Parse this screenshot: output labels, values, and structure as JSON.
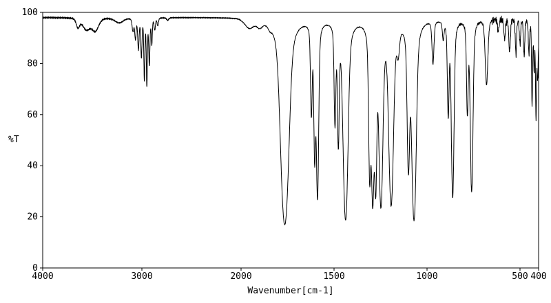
{
  "chart_data": {
    "type": "line",
    "title": "",
    "xlabel": "Wavenumber[cm-1]",
    "ylabel": "%T",
    "background": "#ffffff",
    "line_color": "#000000",
    "axis_color": "#000000",
    "x_axis": {
      "min": 400,
      "max": 4000,
      "reversed": true,
      "scale_break": {
        "at": 2000,
        "left_fraction": 0.4
      },
      "ticks": [
        4000,
        3000,
        2000,
        1500,
        1000,
        500,
        400
      ]
    },
    "y_axis": {
      "min": 0,
      "max": 100,
      "ticks": [
        0,
        20,
        40,
        60,
        80,
        100
      ]
    },
    "baseline": 98,
    "peaks": [
      {
        "nu": 3645,
        "t": 94.5,
        "hw": 20
      },
      {
        "nu": 3560,
        "t": 93.5,
        "hw": 45
      },
      {
        "nu": 3470,
        "t": 93.0,
        "hw": 40
      },
      {
        "nu": 3230,
        "t": 96.0,
        "hw": 50
      },
      {
        "nu": 3090,
        "t": 93.0,
        "hw": 10
      },
      {
        "nu": 3065,
        "t": 90.0,
        "hw": 8
      },
      {
        "nu": 3035,
        "t": 86.0,
        "hw": 8
      },
      {
        "nu": 3005,
        "t": 83.0,
        "hw": 7
      },
      {
        "nu": 2975,
        "t": 74.0,
        "hw": 6
      },
      {
        "nu": 2950,
        "t": 72.0,
        "hw": 6
      },
      {
        "nu": 2925,
        "t": 80.0,
        "hw": 7
      },
      {
        "nu": 2900,
        "t": 88.0,
        "hw": 6
      },
      {
        "nu": 2870,
        "t": 93.5,
        "hw": 8
      },
      {
        "nu": 2840,
        "t": 95.0,
        "hw": 8
      },
      {
        "nu": 2740,
        "t": 97.0,
        "hw": 12
      },
      {
        "nu": 1955,
        "t": 94.5,
        "hw": 28
      },
      {
        "nu": 1900,
        "t": 95.5,
        "hw": 18
      },
      {
        "nu": 1845,
        "t": 96.5,
        "hw": 12
      },
      {
        "nu": 1765,
        "t": 17.0,
        "hw": 20
      },
      {
        "nu": 1622,
        "t": 62.0,
        "hw": 5
      },
      {
        "nu": 1604,
        "t": 44.0,
        "hw": 5
      },
      {
        "nu": 1589,
        "t": 28.0,
        "hw": 6
      },
      {
        "nu": 1495,
        "t": 58.0,
        "hw": 5
      },
      {
        "nu": 1477,
        "t": 50.0,
        "hw": 5
      },
      {
        "nu": 1438,
        "t": 19.0,
        "hw": 12
      },
      {
        "nu": 1308,
        "t": 37.0,
        "hw": 6
      },
      {
        "nu": 1292,
        "t": 27.0,
        "hw": 7
      },
      {
        "nu": 1276,
        "t": 33.0,
        "hw": 6
      },
      {
        "nu": 1248,
        "t": 25.0,
        "hw": 10
      },
      {
        "nu": 1193,
        "t": 25.0,
        "hw": 12
      },
      {
        "nu": 1155,
        "t": 88.0,
        "hw": 8
      },
      {
        "nu": 1100,
        "t": 40.0,
        "hw": 7
      },
      {
        "nu": 1070,
        "t": 19.0,
        "hw": 11
      },
      {
        "nu": 968,
        "t": 81.0,
        "hw": 6
      },
      {
        "nu": 913,
        "t": 91.0,
        "hw": 5
      },
      {
        "nu": 886,
        "t": 61.0,
        "hw": 5
      },
      {
        "nu": 862,
        "t": 28.0,
        "hw": 7
      },
      {
        "nu": 783,
        "t": 62.0,
        "hw": 5
      },
      {
        "nu": 760,
        "t": 30.0,
        "hw": 7
      },
      {
        "nu": 680,
        "t": 72.0,
        "hw": 8
      },
      {
        "nu": 617,
        "t": 93.0,
        "hw": 5
      },
      {
        "nu": 583,
        "t": 90.0,
        "hw": 5
      },
      {
        "nu": 556,
        "t": 85.0,
        "hw": 5
      },
      {
        "nu": 522,
        "t": 84.0,
        "hw": 4
      },
      {
        "nu": 500,
        "t": 88.0,
        "hw": 4
      },
      {
        "nu": 478,
        "t": 83.0,
        "hw": 4
      },
      {
        "nu": 452,
        "t": 85.0,
        "hw": 4
      },
      {
        "nu": 435,
        "t": 64.0,
        "hw": 3
      },
      {
        "nu": 424,
        "t": 78.0,
        "hw": 3
      },
      {
        "nu": 414,
        "t": 60.0,
        "hw": 3
      },
      {
        "nu": 405,
        "t": 75.0,
        "hw": 4
      }
    ],
    "noise": {
      "base_amplitude": 0.25,
      "regions": [
        {
          "from": 4000,
          "to": 3300,
          "amplitude": 0.45
        },
        {
          "from": 3300,
          "to": 2500,
          "amplitude": 0.3
        },
        {
          "from": 900,
          "to": 650,
          "amplitude": 0.7
        },
        {
          "from": 650,
          "to": 400,
          "amplitude": 1.8
        }
      ]
    }
  }
}
